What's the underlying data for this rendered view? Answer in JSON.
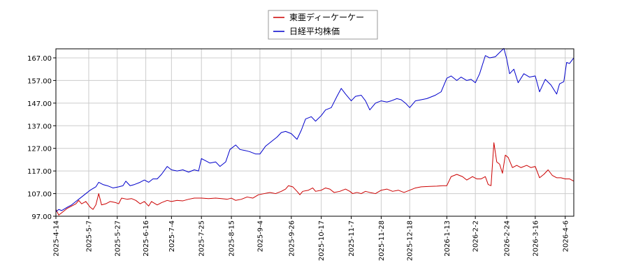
{
  "chart_data": {
    "type": "line",
    "title": "",
    "xlabel": "",
    "ylabel": "",
    "ylim": [
      97,
      171
    ],
    "yticks": [
      "97.00",
      "107.00",
      "117.00",
      "127.00",
      "137.00",
      "147.00",
      "157.00",
      "167.00"
    ],
    "ytick_values": [
      97,
      107,
      117,
      127,
      137,
      147,
      157,
      167
    ],
    "xlim": [
      "2025-04-14",
      "2026-04-12"
    ],
    "xticks": [
      "2025-4-14",
      "2025-5-7",
      "2025-5-27",
      "2025-6-16",
      "2025-7-4",
      "2025-7-25",
      "2025-8-15",
      "2025-9-4",
      "2025-9-26",
      "2025-10-17",
      "2025-11-7",
      "2025-11-28",
      "2025-12-18",
      "2026-1-13",
      "2026-2-2",
      "2026-2-24",
      "2026-3-16",
      "2026-4-6"
    ],
    "xtick_dates": [
      "2025-04-14",
      "2025-05-07",
      "2025-05-27",
      "2025-06-16",
      "2025-07-04",
      "2025-07-25",
      "2025-08-15",
      "2025-09-04",
      "2025-09-26",
      "2025-10-17",
      "2025-11-07",
      "2025-11-28",
      "2025-12-18",
      "2026-01-13",
      "2026-02-02",
      "2026-02-24",
      "2026-03-16",
      "2026-04-06"
    ],
    "grid": true,
    "legend_position": "top-center",
    "series": [
      {
        "name": "東亜ディーケーケー",
        "color": "#cc0000",
        "points": [
          [
            "2025-04-14",
            100
          ],
          [
            "2025-04-16",
            97.5
          ],
          [
            "2025-04-18",
            98.5
          ],
          [
            "2025-04-22",
            100.5
          ],
          [
            "2025-04-25",
            101.5
          ],
          [
            "2025-04-28",
            102.5
          ],
          [
            "2025-04-30",
            104
          ],
          [
            "2025-05-02",
            102.5
          ],
          [
            "2025-05-05",
            103.5
          ],
          [
            "2025-05-08",
            101
          ],
          [
            "2025-05-10",
            100
          ],
          [
            "2025-05-12",
            102
          ],
          [
            "2025-05-14",
            107
          ],
          [
            "2025-05-16",
            102
          ],
          [
            "2025-05-19",
            102.5
          ],
          [
            "2025-05-22",
            103.5
          ],
          [
            "2025-05-26",
            103
          ],
          [
            "2025-05-28",
            102.5
          ],
          [
            "2025-05-30",
            105
          ],
          [
            "2025-06-03",
            104.5
          ],
          [
            "2025-06-06",
            104.8
          ],
          [
            "2025-06-09",
            104
          ],
          [
            "2025-06-12",
            102.5
          ],
          [
            "2025-06-15",
            103.5
          ],
          [
            "2025-06-18",
            101.5
          ],
          [
            "2025-06-20",
            103.5
          ],
          [
            "2025-06-24",
            102
          ],
          [
            "2025-06-27",
            103
          ],
          [
            "2025-07-01",
            104
          ],
          [
            "2025-07-04",
            103.5
          ],
          [
            "2025-07-08",
            104
          ],
          [
            "2025-07-12",
            103.8
          ],
          [
            "2025-07-16",
            104.5
          ],
          [
            "2025-07-20",
            105
          ],
          [
            "2025-07-25",
            105
          ],
          [
            "2025-07-30",
            104.8
          ],
          [
            "2025-08-04",
            105
          ],
          [
            "2025-08-08",
            104.8
          ],
          [
            "2025-08-12",
            104.5
          ],
          [
            "2025-08-15",
            105
          ],
          [
            "2025-08-18",
            104
          ],
          [
            "2025-08-22",
            104.5
          ],
          [
            "2025-08-26",
            105.5
          ],
          [
            "2025-08-30",
            105
          ],
          [
            "2025-09-03",
            106.5
          ],
          [
            "2025-09-07",
            107
          ],
          [
            "2025-09-11",
            107.5
          ],
          [
            "2025-09-15",
            107
          ],
          [
            "2025-09-19",
            108
          ],
          [
            "2025-09-22",
            109
          ],
          [
            "2025-09-24",
            110.5
          ],
          [
            "2025-09-27",
            110
          ],
          [
            "2025-09-30",
            108
          ],
          [
            "2025-10-02",
            106.5
          ],
          [
            "2025-10-04",
            108
          ],
          [
            "2025-10-08",
            108.5
          ],
          [
            "2025-10-11",
            109.5
          ],
          [
            "2025-10-13",
            108
          ],
          [
            "2025-10-17",
            108.5
          ],
          [
            "2025-10-20",
            109.5
          ],
          [
            "2025-10-23",
            109
          ],
          [
            "2025-10-26",
            107.5
          ],
          [
            "2025-10-30",
            108
          ],
          [
            "2025-11-03",
            109
          ],
          [
            "2025-11-06",
            108
          ],
          [
            "2025-11-08",
            107
          ],
          [
            "2025-11-11",
            107.5
          ],
          [
            "2025-11-14",
            107
          ],
          [
            "2025-11-17",
            108
          ],
          [
            "2025-11-20",
            107.5
          ],
          [
            "2025-11-24",
            107
          ],
          [
            "2025-11-28",
            108.5
          ],
          [
            "2025-12-02",
            109
          ],
          [
            "2025-12-06",
            108
          ],
          [
            "2025-12-10",
            108.5
          ],
          [
            "2025-12-14",
            107.5
          ],
          [
            "2025-12-18",
            108.5
          ],
          [
            "2025-12-22",
            109.5
          ],
          [
            "2025-12-26",
            110
          ],
          [
            "2026-01-01",
            110.2
          ],
          [
            "2026-01-06",
            110.3
          ],
          [
            "2026-01-10",
            110.5
          ],
          [
            "2026-01-13",
            110.5
          ],
          [
            "2026-01-16",
            114.5
          ],
          [
            "2026-01-20",
            115.5
          ],
          [
            "2026-01-24",
            114.5
          ],
          [
            "2026-01-27",
            113
          ],
          [
            "2026-01-31",
            114.5
          ],
          [
            "2026-02-03",
            113.5
          ],
          [
            "2026-02-06",
            113.5
          ],
          [
            "2026-02-09",
            114.5
          ],
          [
            "2026-02-11",
            111
          ],
          [
            "2026-02-13",
            110.5
          ],
          [
            "2026-02-15",
            129.5
          ],
          [
            "2026-02-17",
            121
          ],
          [
            "2026-02-19",
            120
          ],
          [
            "2026-02-21",
            116
          ],
          [
            "2026-02-23",
            124
          ],
          [
            "2026-02-25",
            123
          ],
          [
            "2026-02-28",
            118.5
          ],
          [
            "2026-03-03",
            119.5
          ],
          [
            "2026-03-06",
            118.5
          ],
          [
            "2026-03-10",
            119.5
          ],
          [
            "2026-03-13",
            118.5
          ],
          [
            "2026-03-16",
            119
          ],
          [
            "2026-03-19",
            114
          ],
          [
            "2026-03-22",
            115.5
          ],
          [
            "2026-03-25",
            117.5
          ],
          [
            "2026-03-28",
            115
          ],
          [
            "2026-03-31",
            114
          ],
          [
            "2026-04-03",
            114
          ],
          [
            "2026-04-06",
            113.5
          ],
          [
            "2026-04-09",
            113.5
          ],
          [
            "2026-04-12",
            112.5
          ]
        ]
      },
      {
        "name": "日経平均株価",
        "color": "#0000cc",
        "points": [
          [
            "2025-04-14",
            99
          ],
          [
            "2025-04-16",
            100
          ],
          [
            "2025-04-18",
            99.5
          ],
          [
            "2025-04-22",
            101
          ],
          [
            "2025-04-25",
            102
          ],
          [
            "2025-04-28",
            103.5
          ],
          [
            "2025-05-01",
            105
          ],
          [
            "2025-05-05",
            107
          ],
          [
            "2025-05-08",
            108.5
          ],
          [
            "2025-05-12",
            110
          ],
          [
            "2025-05-14",
            112
          ],
          [
            "2025-05-17",
            111
          ],
          [
            "2025-05-20",
            110.5
          ],
          [
            "2025-05-24",
            109.5
          ],
          [
            "2025-05-28",
            110
          ],
          [
            "2025-05-31",
            110.5
          ],
          [
            "2025-06-02",
            112.5
          ],
          [
            "2025-06-05",
            110.5
          ],
          [
            "2025-06-08",
            111
          ],
          [
            "2025-06-12",
            112
          ],
          [
            "2025-06-15",
            113
          ],
          [
            "2025-06-18",
            112
          ],
          [
            "2025-06-21",
            113.5
          ],
          [
            "2025-06-24",
            113.5
          ],
          [
            "2025-06-27",
            115.5
          ],
          [
            "2025-07-01",
            119
          ],
          [
            "2025-07-04",
            117.5
          ],
          [
            "2025-07-08",
            117
          ],
          [
            "2025-07-12",
            117.5
          ],
          [
            "2025-07-16",
            116.5
          ],
          [
            "2025-07-20",
            117.5
          ],
          [
            "2025-07-23",
            117
          ],
          [
            "2025-07-25",
            122.5
          ],
          [
            "2025-07-28",
            121.5
          ],
          [
            "2025-07-31",
            120.5
          ],
          [
            "2025-08-04",
            121
          ],
          [
            "2025-08-07",
            119
          ],
          [
            "2025-08-11",
            121
          ],
          [
            "2025-08-14",
            126.5
          ],
          [
            "2025-08-18",
            128.5
          ],
          [
            "2025-08-21",
            126.5
          ],
          [
            "2025-08-25",
            126
          ],
          [
            "2025-08-28",
            125.5
          ],
          [
            "2025-09-01",
            124.5
          ],
          [
            "2025-09-04",
            124.5
          ],
          [
            "2025-09-08",
            128
          ],
          [
            "2025-09-12",
            130
          ],
          [
            "2025-09-16",
            132
          ],
          [
            "2025-09-19",
            134
          ],
          [
            "2025-09-22",
            134.5
          ],
          [
            "2025-09-26",
            133.5
          ],
          [
            "2025-09-30",
            131
          ],
          [
            "2025-10-03",
            135
          ],
          [
            "2025-10-06",
            140
          ],
          [
            "2025-10-10",
            141
          ],
          [
            "2025-10-13",
            139
          ],
          [
            "2025-10-17",
            141.5
          ],
          [
            "2025-10-20",
            144
          ],
          [
            "2025-10-24",
            145
          ],
          [
            "2025-10-28",
            150
          ],
          [
            "2025-10-31",
            153.5
          ],
          [
            "2025-11-03",
            151
          ],
          [
            "2025-11-07",
            148
          ],
          [
            "2025-11-10",
            150
          ],
          [
            "2025-11-14",
            150.5
          ],
          [
            "2025-11-17",
            148
          ],
          [
            "2025-11-20",
            144
          ],
          [
            "2025-11-24",
            147
          ],
          [
            "2025-11-28",
            148
          ],
          [
            "2025-12-02",
            147.5
          ],
          [
            "2025-12-05",
            148
          ],
          [
            "2025-12-09",
            149
          ],
          [
            "2025-12-12",
            148.5
          ],
          [
            "2025-12-15",
            147
          ],
          [
            "2025-12-18",
            145
          ],
          [
            "2025-12-22",
            148
          ],
          [
            "2025-12-26",
            148.5
          ],
          [
            "2025-12-30",
            149
          ],
          [
            "2026-01-05",
            150.5
          ],
          [
            "2026-01-09",
            152
          ],
          [
            "2026-01-13",
            158
          ],
          [
            "2026-01-16",
            159
          ],
          [
            "2026-01-20",
            157
          ],
          [
            "2026-01-23",
            158.5
          ],
          [
            "2026-01-27",
            157
          ],
          [
            "2026-01-30",
            157.5
          ],
          [
            "2026-02-02",
            156
          ],
          [
            "2026-02-05",
            160
          ],
          [
            "2026-02-09",
            168
          ],
          [
            "2026-02-12",
            167
          ],
          [
            "2026-02-16",
            167.5
          ],
          [
            "2026-02-20",
            170
          ],
          [
            "2026-02-22",
            171.2
          ],
          [
            "2026-02-24",
            166.5
          ],
          [
            "2026-02-26",
            160
          ],
          [
            "2026-03-01",
            162
          ],
          [
            "2026-03-04",
            156
          ],
          [
            "2026-03-08",
            160
          ],
          [
            "2026-03-12",
            158.5
          ],
          [
            "2026-03-16",
            159
          ],
          [
            "2026-03-19",
            152
          ],
          [
            "2026-03-23",
            157.5
          ],
          [
            "2026-03-27",
            155
          ],
          [
            "2026-03-31",
            151
          ],
          [
            "2026-04-02",
            155.5
          ],
          [
            "2026-04-05",
            156.5
          ],
          [
            "2026-04-07",
            165
          ],
          [
            "2026-04-09",
            164.5
          ],
          [
            "2026-04-12",
            167
          ]
        ]
      }
    ]
  }
}
